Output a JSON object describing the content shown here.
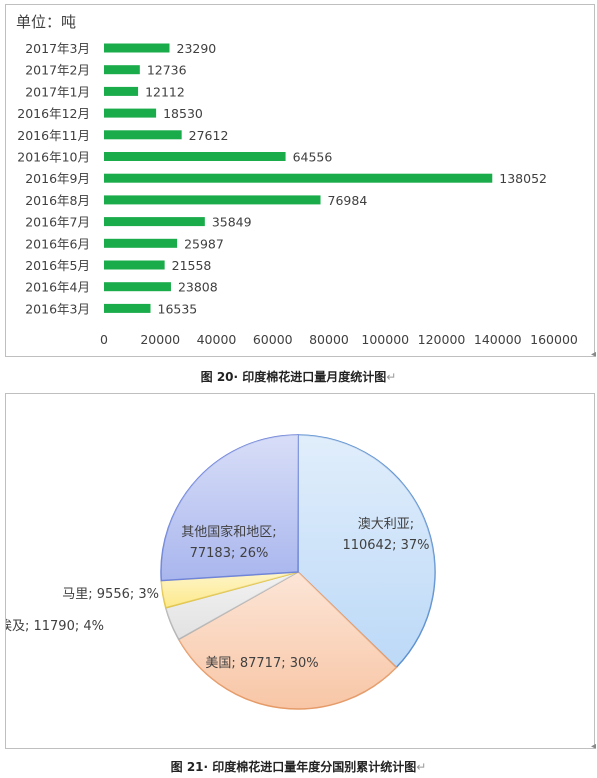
{
  "bar_chart": {
    "unit_label": "单位：吨",
    "caption": "图 20· 印度棉花进口量月度统计图",
    "caption_mark": "↵"
  },
  "pie_chart": {
    "caption": "图 21· 印度棉花进口量年度分国别累计统计图",
    "caption_mark": "↵"
  },
  "chart_data": [
    {
      "type": "bar",
      "orientation": "horizontal",
      "categories": [
        "2017年3月",
        "2017年2月",
        "2017年1月",
        "2016年12月",
        "2016年11月",
        "2016年10月",
        "2016年9月",
        "2016年8月",
        "2016年7月",
        "2016年6月",
        "2016年5月",
        "2016年4月",
        "2016年3月"
      ],
      "values": [
        23290,
        12736,
        12112,
        18530,
        27612,
        64556,
        138052,
        76984,
        35849,
        25987,
        21558,
        23808,
        16535
      ],
      "data_labels": [
        "23290",
        "12736",
        "12112",
        "18530",
        "27612",
        "64556",
        "138052",
        "76984",
        "35849",
        "25987",
        "21558",
        "23808",
        "16535"
      ],
      "xlim": [
        0,
        160000
      ],
      "xticks": [
        "0",
        "20000",
        "40000",
        "60000",
        "80000",
        "100000",
        "120000",
        "140000",
        "160000"
      ],
      "grid": false,
      "legend": "none",
      "color": "#1aab4a"
    },
    {
      "type": "pie",
      "slices": [
        {
          "label": "澳大利亚;",
          "value_text": "110642; 37%",
          "value": 110642,
          "percent": 37,
          "color": "#bcd9f7"
        },
        {
          "label": "美国;",
          "value_text": "87717; 30%",
          "value": 87717,
          "percent": 30,
          "color": "#f8c6a6"
        },
        {
          "label": "埃及;",
          "value_text": "11790; 4%",
          "value": 11790,
          "percent": 4,
          "color": "#e2e2e2"
        },
        {
          "label": "马里;",
          "value_text": "9556; 3%",
          "value": 9556,
          "percent": 3,
          "color": "#fde98a"
        },
        {
          "label": "其他国家和地区;",
          "value_text": "77183; 26%",
          "value": 77183,
          "percent": 26,
          "color": "#a9b6ee"
        }
      ],
      "legend": "none"
    }
  ]
}
